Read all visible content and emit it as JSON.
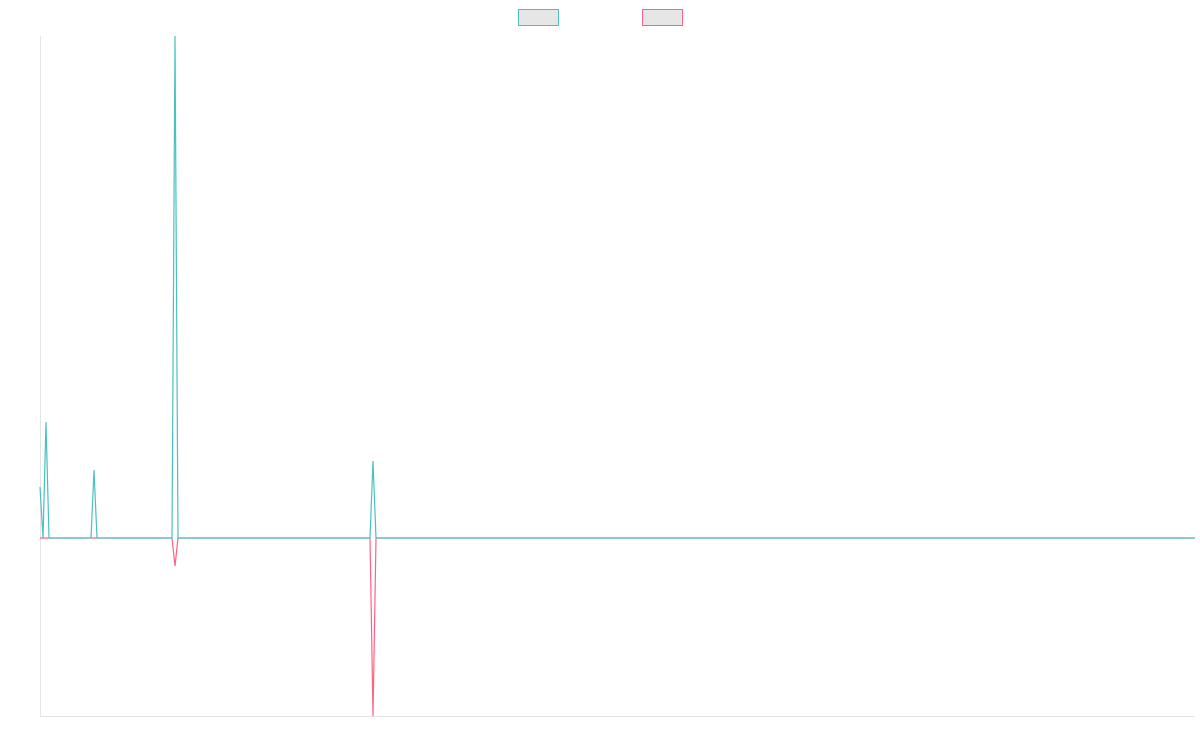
{
  "chart_data": {
    "type": "line",
    "x": [
      0,
      1,
      2,
      3,
      17,
      18,
      19,
      44,
      45,
      46,
      110,
      111,
      112,
      385
    ],
    "xlim": [
      0,
      385
    ],
    "ylim": [
      -178,
      502
    ],
    "series": [
      {
        "color": "#ff6384",
        "values": [
          0,
          0,
          0,
          0,
          0,
          0,
          0,
          0,
          -28,
          0,
          0,
          -178,
          0,
          0
        ]
      },
      {
        "color": "#4bc0c0",
        "values": [
          51,
          0,
          116,
          0,
          0,
          68,
          0,
          0,
          502,
          0,
          0,
          77,
          0,
          0
        ]
      }
    ],
    "legend": "top"
  }
}
